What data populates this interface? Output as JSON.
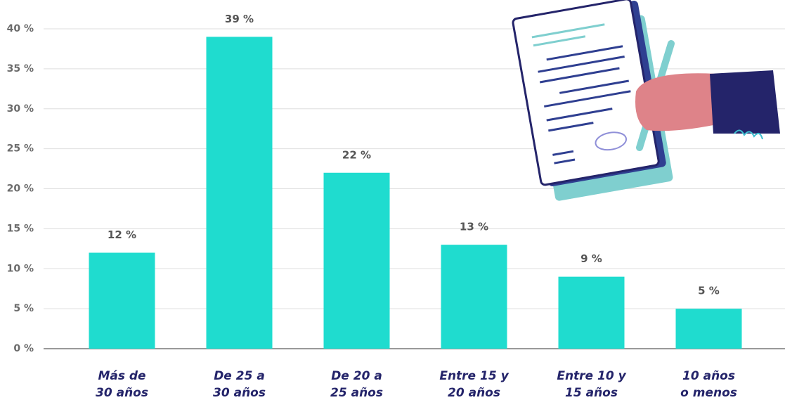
{
  "chart_data": {
    "type": "bar",
    "categories": [
      [
        "Más de",
        "30 años"
      ],
      [
        "De 25 a",
        "30 años"
      ],
      [
        "De 20 a",
        "25 años"
      ],
      [
        "Entre 15 y",
        "20 años"
      ],
      [
        "Entre 10 y",
        "15 años"
      ],
      [
        "10 años",
        "o menos"
      ]
    ],
    "values": [
      12,
      39,
      22,
      13,
      9,
      5
    ],
    "value_labels": [
      "12 %",
      "39 %",
      "22 %",
      "13 %",
      "9 %",
      "5 %"
    ],
    "color": "#1fdccf",
    "ylim": [
      0,
      40
    ],
    "yticks": [
      {
        "value": 0,
        "label": "0 %"
      },
      {
        "value": 5,
        "label": "5 %"
      },
      {
        "value": 10,
        "label": "10 %"
      },
      {
        "value": 15,
        "label": "15 %"
      },
      {
        "value": 20,
        "label": "20 %"
      },
      {
        "value": 25,
        "label": "25 %"
      },
      {
        "value": 30,
        "label": "30 %"
      },
      {
        "value": 35,
        "label": "35 %"
      },
      {
        "value": 40,
        "label": "40 %"
      }
    ],
    "grid": true
  }
}
